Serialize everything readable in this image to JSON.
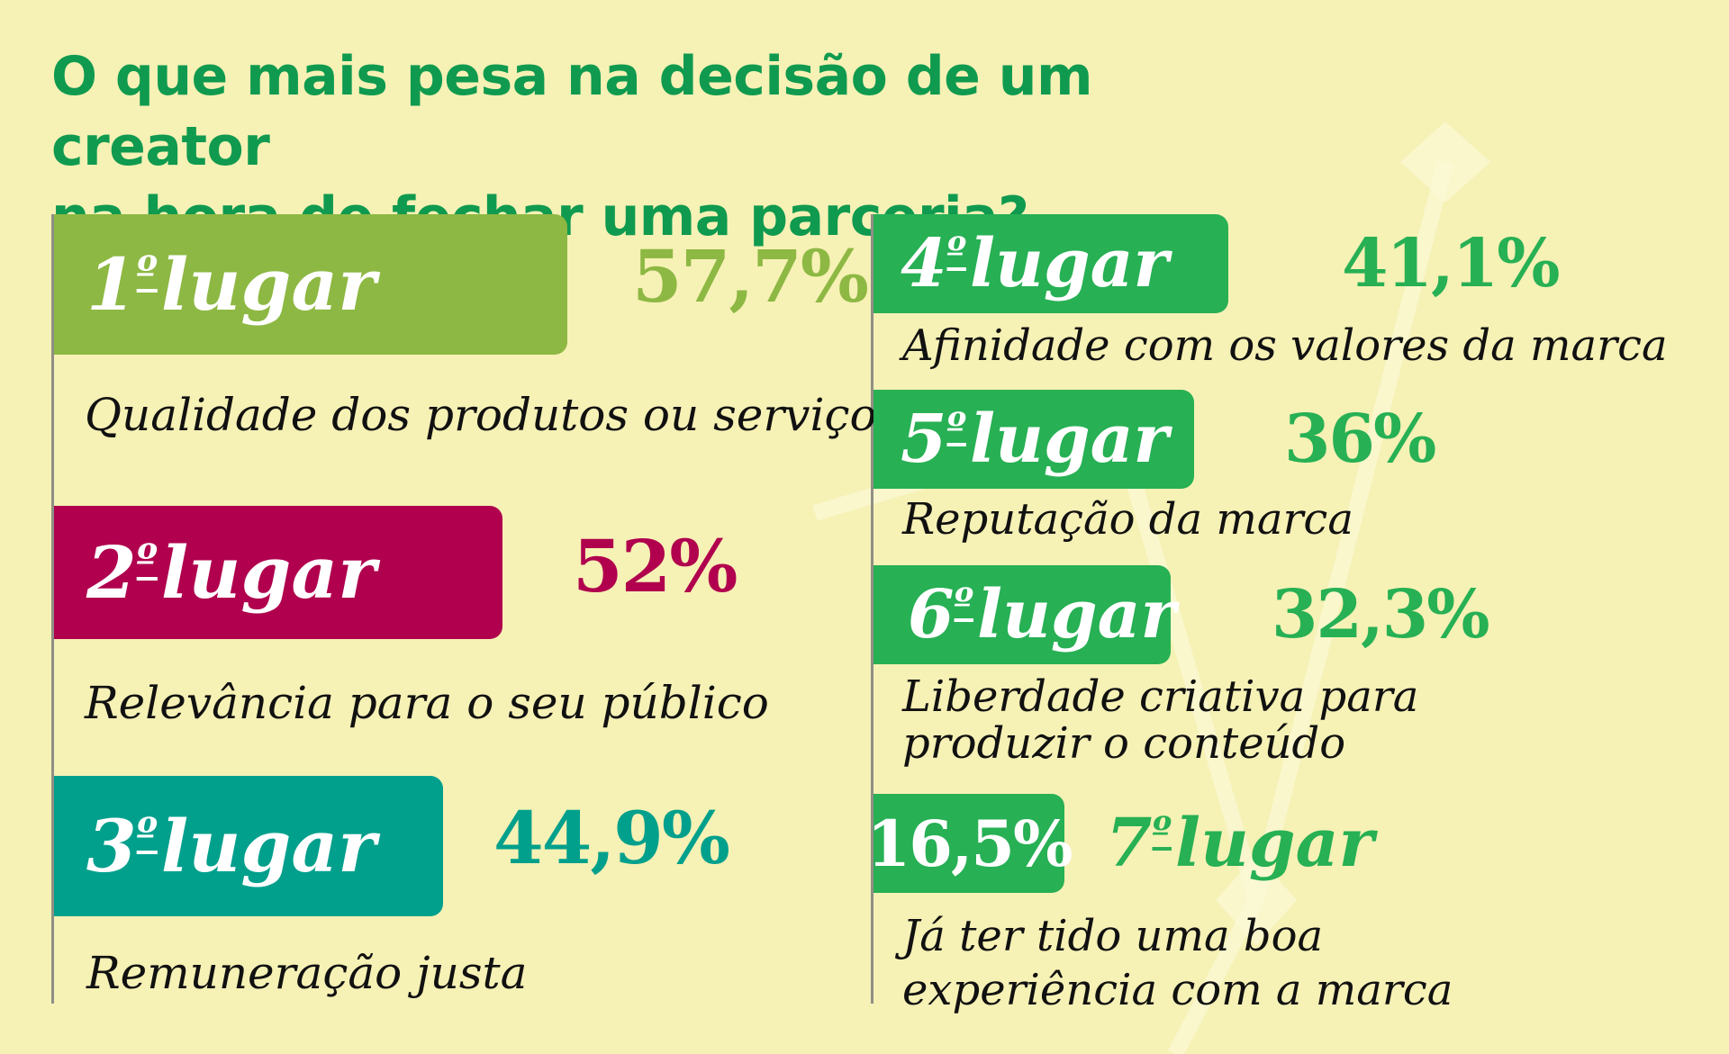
{
  "header": {
    "title_line1": "O que mais pesa na decisão de um creator",
    "title_line2": "na hora de fechar uma parceria?"
  },
  "colors": {
    "background": "#f6f1b5",
    "title": "#0f9a4f",
    "rank1": "#8db843",
    "rank2": "#b0004e",
    "rank3": "#00a08c",
    "rank_green": "#27b054"
  },
  "chart_data": {
    "type": "bar",
    "series": [
      {
        "values": [
          57.7,
          52,
          44.9,
          41.1,
          36,
          32.3,
          16.5
        ]
      }
    ],
    "categories": [
      "Qualidade dos produtos ou serviços",
      "Relevância para o seu público",
      "Remuneração justa",
      "Afinidade com os valores da marca",
      "Reputação da marca",
      "Liberdade criativa para produzir o conteúdo",
      "Já ter tido uma boa experiência com a marca"
    ],
    "items": [
      {
        "rank": "1",
        "suffix": "º",
        "word": "lugar",
        "value": 57.7,
        "value_label": "57,7%",
        "desc_lines": [
          "Qualidade dos produtos ou serviços"
        ]
      },
      {
        "rank": "2",
        "suffix": "º",
        "word": "lugar",
        "value": 52,
        "value_label": "52%",
        "desc_lines": [
          "Relevância para o seu público"
        ]
      },
      {
        "rank": "3",
        "suffix": "º",
        "word": "lugar",
        "value": 44.9,
        "value_label": "44,9%",
        "desc_lines": [
          "Remuneração justa"
        ]
      },
      {
        "rank": "4",
        "suffix": "º",
        "word": "lugar",
        "value": 41.1,
        "value_label": "41,1%",
        "desc_lines": [
          "Afinidade com os valores da marca"
        ]
      },
      {
        "rank": "5",
        "suffix": "º",
        "word": "lugar",
        "value": 36,
        "value_label": "36%",
        "desc_lines": [
          "Reputação da marca"
        ]
      },
      {
        "rank": "6",
        "suffix": "º",
        "word": "lugar",
        "value": 32.3,
        "value_label": "32,3%",
        "desc_lines": [
          "Liberdade criativa para",
          "produzir o conteúdo"
        ]
      },
      {
        "rank": "7",
        "suffix": "º",
        "word": "lugar",
        "value": 16.5,
        "value_label": "16,5%",
        "desc_lines": [
          "Já ter tido uma boa",
          "experiência com a marca"
        ]
      }
    ]
  }
}
